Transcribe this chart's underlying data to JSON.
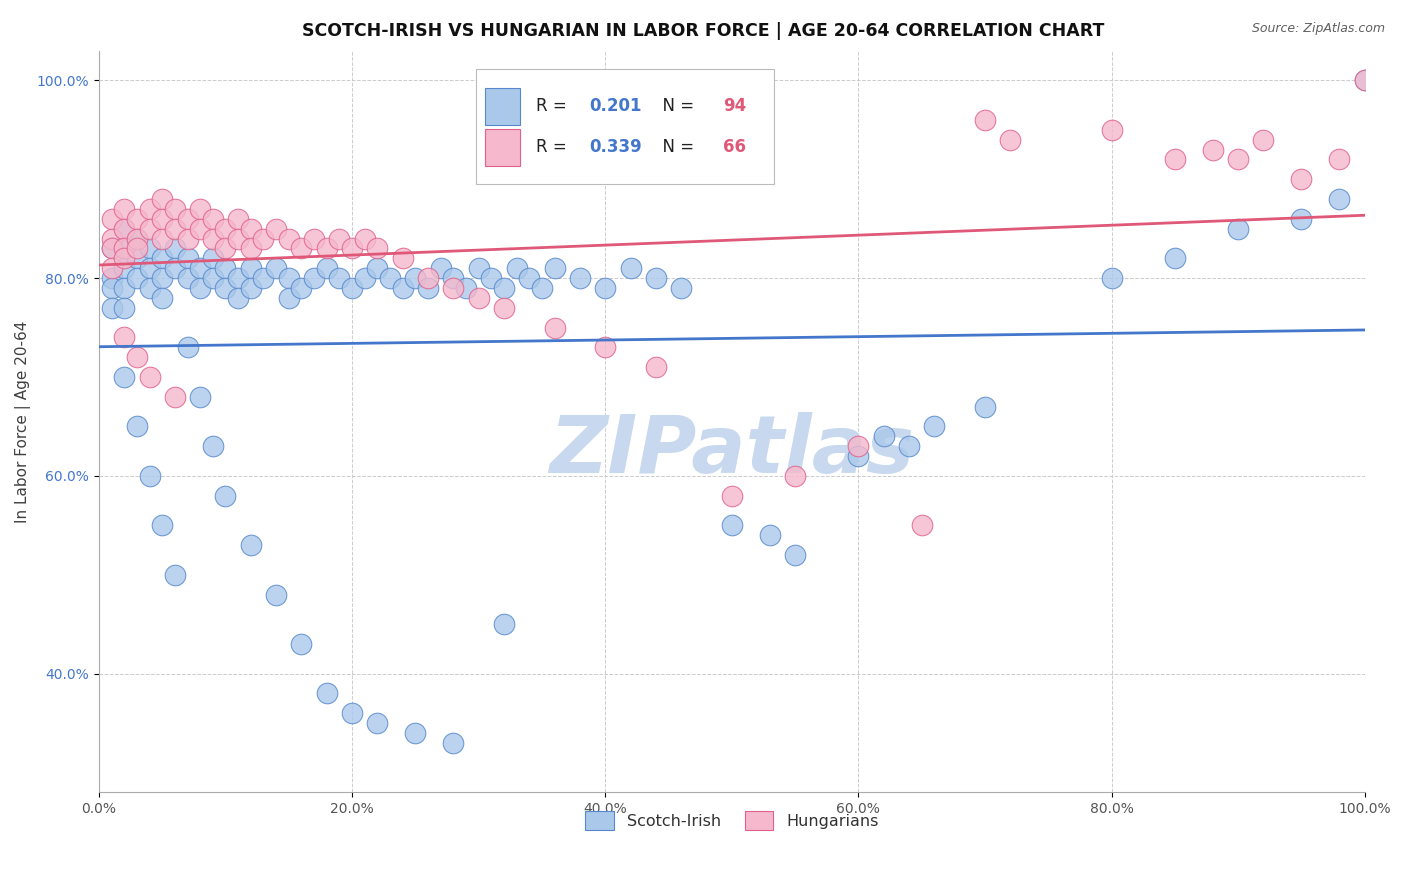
{
  "title": "SCOTCH-IRISH VS HUNGARIAN IN LABOR FORCE | AGE 20-64 CORRELATION CHART",
  "source": "Source: ZipAtlas.com",
  "ylabel": "In Labor Force | Age 20-64",
  "xlim": [
    0.0,
    1.0
  ],
  "ylim": [
    0.28,
    1.03
  ],
  "xticks": [
    0.0,
    0.2,
    0.4,
    0.6,
    0.8,
    1.0
  ],
  "yticks": [
    0.4,
    0.6,
    0.8,
    1.0
  ],
  "xtick_labels": [
    "0.0%",
    "20.0%",
    "40.0%",
    "60.0%",
    "80.0%",
    "100.0%"
  ],
  "ytick_labels": [
    "40.0%",
    "60.0%",
    "80.0%",
    "100.0%"
  ],
  "blue_fill": "#aac8ea",
  "blue_edge": "#5588cc",
  "pink_fill": "#f5b8cc",
  "pink_edge": "#e0608a",
  "blue_line": "#4477cc",
  "pink_line": "#e05878",
  "blue_label": "Scotch-Irish",
  "pink_label": "Hungarians",
  "blue_R": 0.201,
  "blue_N": 94,
  "pink_R": 0.339,
  "pink_N": 66,
  "legend_R_blue": "#4477cc",
  "legend_N_red": "#e05878",
  "watermark_color": "#c8d8ee",
  "bg": "#ffffff",
  "blue_x": [
    0.01,
    0.01,
    0.01,
    0.01,
    0.02,
    0.02,
    0.02,
    0.02,
    0.02,
    0.03,
    0.03,
    0.03,
    0.04,
    0.04,
    0.04,
    0.05,
    0.05,
    0.05,
    0.06,
    0.06,
    0.07,
    0.07,
    0.08,
    0.08,
    0.09,
    0.09,
    0.1,
    0.1,
    0.11,
    0.11,
    0.12,
    0.12,
    0.13,
    0.14,
    0.15,
    0.15,
    0.16,
    0.17,
    0.18,
    0.19,
    0.2,
    0.21,
    0.22,
    0.23,
    0.24,
    0.25,
    0.26,
    0.27,
    0.28,
    0.29,
    0.3,
    0.31,
    0.32,
    0.33,
    0.34,
    0.35,
    0.36,
    0.38,
    0.4,
    0.42,
    0.44,
    0.46,
    0.5,
    0.53,
    0.55,
    0.6,
    0.62,
    0.64,
    0.66,
    0.7,
    0.8,
    0.85,
    0.9,
    0.95,
    0.98,
    1.0,
    0.02,
    0.03,
    0.04,
    0.05,
    0.06,
    0.07,
    0.08,
    0.09,
    0.1,
    0.12,
    0.14,
    0.16,
    0.18,
    0.2,
    0.22,
    0.25,
    0.28,
    0.32
  ],
  "blue_y": [
    0.83,
    0.8,
    0.79,
    0.77,
    0.85,
    0.83,
    0.81,
    0.79,
    0.77,
    0.84,
    0.82,
    0.8,
    0.83,
    0.81,
    0.79,
    0.82,
    0.8,
    0.78,
    0.83,
    0.81,
    0.82,
    0.8,
    0.81,
    0.79,
    0.82,
    0.8,
    0.81,
    0.79,
    0.8,
    0.78,
    0.81,
    0.79,
    0.8,
    0.81,
    0.8,
    0.78,
    0.79,
    0.8,
    0.81,
    0.8,
    0.79,
    0.8,
    0.81,
    0.8,
    0.79,
    0.8,
    0.79,
    0.81,
    0.8,
    0.79,
    0.81,
    0.8,
    0.79,
    0.81,
    0.8,
    0.79,
    0.81,
    0.8,
    0.79,
    0.81,
    0.8,
    0.79,
    0.55,
    0.54,
    0.52,
    0.62,
    0.64,
    0.63,
    0.65,
    0.67,
    0.8,
    0.82,
    0.85,
    0.86,
    0.88,
    1.0,
    0.7,
    0.65,
    0.6,
    0.55,
    0.5,
    0.73,
    0.68,
    0.63,
    0.58,
    0.53,
    0.48,
    0.43,
    0.38,
    0.36,
    0.35,
    0.34,
    0.33,
    0.45
  ],
  "pink_x": [
    0.01,
    0.01,
    0.01,
    0.01,
    0.02,
    0.02,
    0.02,
    0.02,
    0.03,
    0.03,
    0.03,
    0.04,
    0.04,
    0.05,
    0.05,
    0.05,
    0.06,
    0.06,
    0.07,
    0.07,
    0.08,
    0.08,
    0.09,
    0.09,
    0.1,
    0.1,
    0.11,
    0.11,
    0.12,
    0.12,
    0.13,
    0.14,
    0.15,
    0.16,
    0.17,
    0.18,
    0.19,
    0.2,
    0.21,
    0.22,
    0.24,
    0.26,
    0.28,
    0.3,
    0.32,
    0.36,
    0.4,
    0.44,
    0.5,
    0.55,
    0.6,
    0.65,
    0.7,
    0.72,
    0.8,
    0.85,
    0.88,
    0.9,
    0.92,
    0.95,
    0.98,
    1.0,
    0.02,
    0.03,
    0.04,
    0.06
  ],
  "pink_y": [
    0.86,
    0.84,
    0.83,
    0.81,
    0.87,
    0.85,
    0.83,
    0.82,
    0.86,
    0.84,
    0.83,
    0.87,
    0.85,
    0.88,
    0.86,
    0.84,
    0.87,
    0.85,
    0.86,
    0.84,
    0.87,
    0.85,
    0.86,
    0.84,
    0.85,
    0.83,
    0.86,
    0.84,
    0.85,
    0.83,
    0.84,
    0.85,
    0.84,
    0.83,
    0.84,
    0.83,
    0.84,
    0.83,
    0.84,
    0.83,
    0.82,
    0.8,
    0.79,
    0.78,
    0.77,
    0.75,
    0.73,
    0.71,
    0.58,
    0.6,
    0.63,
    0.55,
    0.96,
    0.94,
    0.95,
    0.92,
    0.93,
    0.92,
    0.94,
    0.9,
    0.92,
    1.0,
    0.74,
    0.72,
    0.7,
    0.68
  ]
}
